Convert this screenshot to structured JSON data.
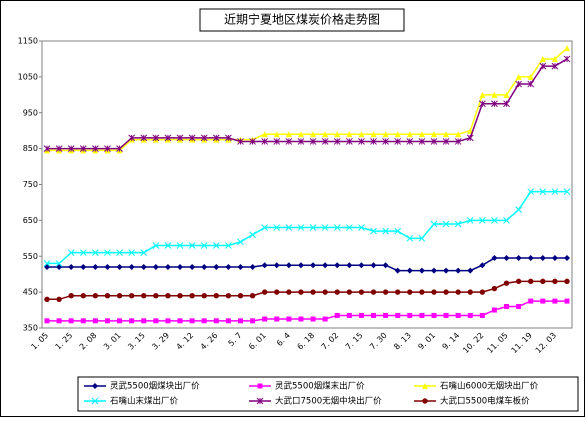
{
  "chart_data": {
    "type": "line",
    "title": "近期宁夏地区煤炭价格走势图",
    "categories": [
      "1. 05",
      null,
      "1. 25",
      null,
      "2. 08",
      null,
      "3. 01",
      null,
      "3. 15",
      null,
      "3. 29",
      null,
      "4. 12",
      null,
      "4. 26",
      null,
      "5. 7",
      null,
      "6. 01",
      null,
      "6. 4",
      null,
      "6. 18",
      null,
      "7. 02",
      null,
      "7. 15",
      null,
      "7. 30",
      null,
      "8. 13",
      null,
      "9. 01",
      null,
      "9. 14",
      null,
      "10. 22",
      null,
      "11. 05",
      null,
      "11. 19",
      null,
      "12. 03",
      null
    ],
    "ylim": [
      350,
      1150
    ],
    "yticks": [
      350,
      450,
      550,
      650,
      750,
      850,
      950,
      1050,
      1150
    ],
    "grid": false,
    "legend": "bottom",
    "series": [
      {
        "name": "灵武5500烟煤块出厂价",
        "color": "#000080",
        "marker": "diamond",
        "values": [
          520,
          520,
          520,
          520,
          520,
          520,
          520,
          520,
          520,
          520,
          520,
          520,
          520,
          520,
          520,
          520,
          520,
          520,
          525,
          525,
          525,
          525,
          525,
          525,
          525,
          525,
          525,
          525,
          525,
          510,
          510,
          510,
          510,
          510,
          510,
          510,
          525,
          545,
          545,
          545,
          545,
          545,
          545,
          545
        ]
      },
      {
        "name": "灵武5500烟煤末出厂价",
        "color": "#ff00ff",
        "marker": "square",
        "values": [
          370,
          370,
          370,
          370,
          370,
          370,
          370,
          370,
          370,
          370,
          370,
          370,
          370,
          370,
          370,
          370,
          370,
          370,
          375,
          375,
          375,
          375,
          375,
          375,
          385,
          385,
          385,
          385,
          385,
          385,
          385,
          385,
          385,
          385,
          385,
          385,
          385,
          400,
          410,
          410,
          425,
          425,
          425,
          425
        ]
      },
      {
        "name": "石嘴山6000无烟块出厂价",
        "color": "#ffff00",
        "marker": "triangle",
        "values": [
          845,
          845,
          845,
          845,
          845,
          845,
          845,
          875,
          875,
          875,
          875,
          875,
          875,
          875,
          875,
          875,
          875,
          875,
          890,
          890,
          890,
          890,
          890,
          890,
          890,
          890,
          890,
          890,
          890,
          890,
          890,
          890,
          890,
          890,
          890,
          900,
          1000,
          1000,
          1000,
          1050,
          1050,
          1100,
          1100,
          1130
        ]
      },
      {
        "name": "石嘴山末煤出厂价",
        "color": "#00ffff",
        "marker": "x",
        "values": [
          530,
          530,
          560,
          560,
          560,
          560,
          560,
          560,
          560,
          580,
          580,
          580,
          580,
          580,
          580,
          580,
          590,
          610,
          630,
          630,
          630,
          630,
          630,
          630,
          630,
          630,
          630,
          620,
          620,
          620,
          600,
          600,
          640,
          640,
          640,
          650,
          650,
          650,
          650,
          680,
          730,
          730,
          730,
          730
        ]
      },
      {
        "name": "大武口7500无烟中块出厂价",
        "color": "#800080",
        "marker": "star",
        "values": [
          850,
          850,
          850,
          850,
          850,
          850,
          850,
          880,
          880,
          880,
          880,
          880,
          880,
          880,
          880,
          880,
          870,
          870,
          870,
          870,
          870,
          870,
          870,
          870,
          870,
          870,
          870,
          870,
          870,
          870,
          870,
          870,
          870,
          870,
          870,
          880,
          975,
          975,
          975,
          1030,
          1030,
          1080,
          1080,
          1100
        ]
      },
      {
        "name": "大武口5500电煤车板价",
        "color": "#800000",
        "marker": "circle",
        "values": [
          430,
          430,
          440,
          440,
          440,
          440,
          440,
          440,
          440,
          440,
          440,
          440,
          440,
          440,
          440,
          440,
          440,
          440,
          450,
          450,
          450,
          450,
          450,
          450,
          450,
          450,
          450,
          450,
          450,
          450,
          450,
          450,
          450,
          450,
          450,
          450,
          450,
          460,
          475,
          480,
          480,
          480,
          480,
          480
        ]
      }
    ]
  }
}
